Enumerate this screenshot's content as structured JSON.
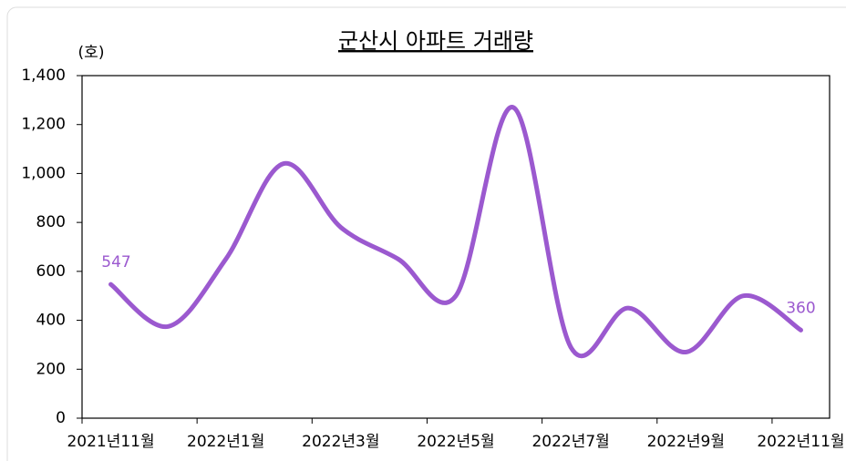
{
  "chart_data": {
    "type": "line",
    "title": "군산시 아파트 거래량",
    "y_unit": "(호)",
    "categories": [
      "2021년11월",
      null,
      "2022년1월",
      null,
      "2022년3월",
      null,
      "2022년5월",
      null,
      "2022년7월",
      null,
      "2022년9월",
      null,
      "2022년11월"
    ],
    "series": [
      {
        "name": "거래량",
        "color": "#9b59cf",
        "values": [
          547,
          375,
          650,
          1040,
          780,
          650,
          500,
          1270,
          290,
          450,
          270,
          500,
          360
        ]
      }
    ],
    "ylim": [
      0,
      1400
    ],
    "yticks": [
      0,
      200,
      400,
      600,
      800,
      {
        "value": 1000,
        "label": "1,000"
      },
      {
        "value": 1200,
        "label": "1,200"
      },
      {
        "value": 1400,
        "label": "1,400"
      }
    ],
    "labeled_points": [
      0,
      12
    ]
  }
}
